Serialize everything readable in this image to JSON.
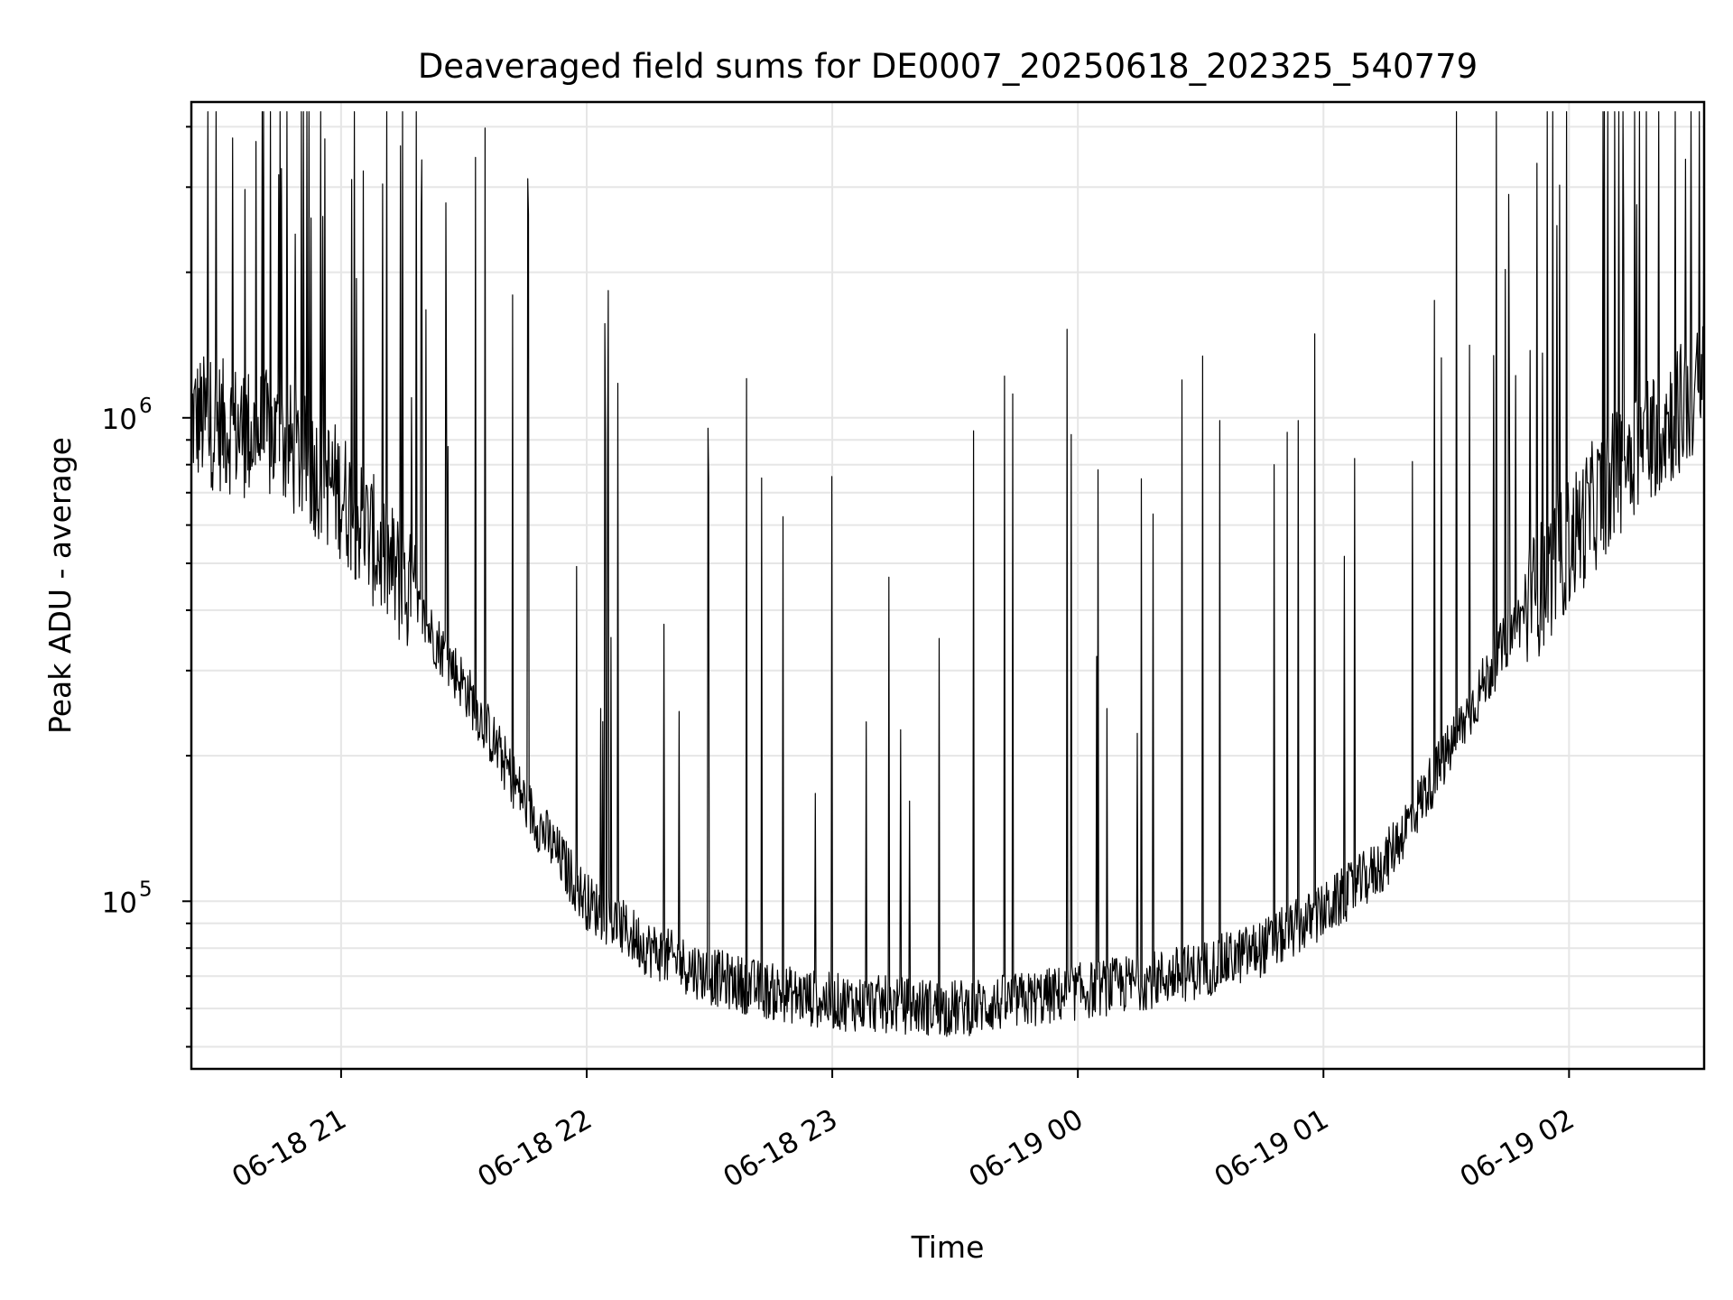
{
  "chart_data": {
    "type": "line",
    "title": "Deaveraged field sums for DE0007_20250618_202325_540779",
    "xlabel": "Time",
    "ylabel": "Peak ADU - average",
    "yscale": "log",
    "grid": true,
    "xlim": [
      "2025-06-18 20:23:25",
      "2025-06-19 02:33:00"
    ],
    "ylim": [
      45000,
      4500000
    ],
    "xticks": [
      {
        "value": "2025-06-18 21:00",
        "label": "06-18 21"
      },
      {
        "value": "2025-06-18 22:00",
        "label": "06-18 22"
      },
      {
        "value": "2025-06-18 23:00",
        "label": "06-18 23"
      },
      {
        "value": "2025-06-19 00:00",
        "label": "06-19 00"
      },
      {
        "value": "2025-06-19 01:00",
        "label": "06-19 01"
      },
      {
        "value": "2025-06-19 02:00",
        "label": "06-19 02"
      }
    ],
    "yticks": [
      {
        "value": 100000,
        "base": "10",
        "exp": "5"
      },
      {
        "value": 1000000,
        "base": "10",
        "exp": "6"
      }
    ],
    "line_color": "#000000",
    "series": [
      {
        "x": [
          "2025-06-18 20:23:25",
          "2025-06-18 20:45",
          "2025-06-18 21:00",
          "2025-06-18 21:15",
          "2025-06-18 21:30",
          "2025-06-18 21:45",
          "2025-06-18 22:00",
          "2025-06-18 22:15",
          "2025-06-18 22:30",
          "2025-06-18 22:45",
          "2025-06-18 23:00",
          "2025-06-18 23:15",
          "2025-06-18 23:30",
          "2025-06-18 23:45",
          "2025-06-19 00:00",
          "2025-06-19 00:15",
          "2025-06-19 00:30",
          "2025-06-19 00:45",
          "2025-06-19 01:00",
          "2025-06-19 01:15",
          "2025-06-19 01:30",
          "2025-06-19 01:45",
          "2025-06-19 02:00",
          "2025-06-19 02:15",
          "2025-06-19 02:33"
        ],
        "y": [
          1000000,
          900000,
          700000,
          450000,
          280000,
          160000,
          100000,
          80000,
          70000,
          65000,
          62000,
          61000,
          60000,
          62000,
          65000,
          68000,
          72000,
          80000,
          95000,
          120000,
          200000,
          350000,
          550000,
          850000,
          1150000
        ]
      }
    ]
  }
}
